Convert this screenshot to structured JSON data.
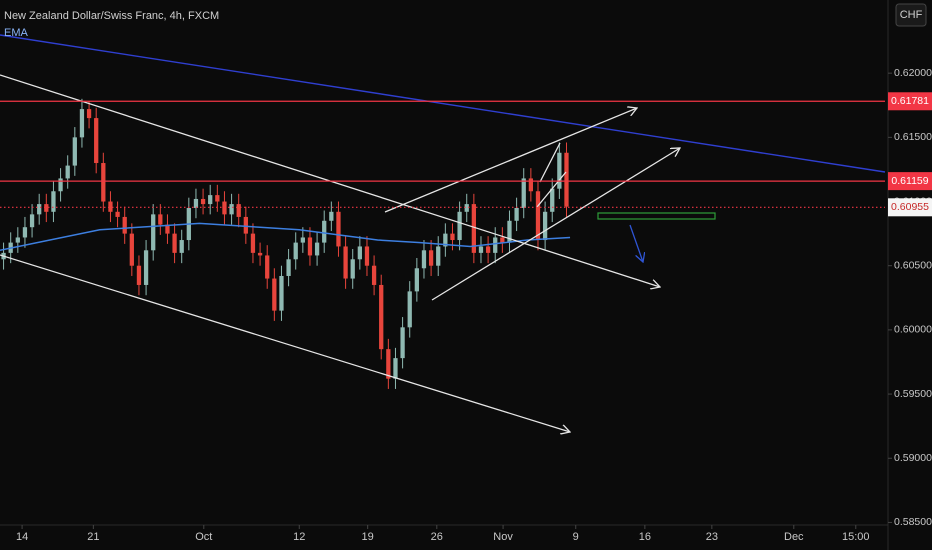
{
  "header": {
    "title": "New Zealand Dollar/Swiss Franc, 4h, FXCM",
    "currency": "CHF"
  },
  "chart_data": {
    "type": "candlestick",
    "up_color": "#8fb9b2",
    "down_color": "#e8453c",
    "ohlc": [
      [
        0.6055,
        0.6068,
        0.6047,
        0.606
      ],
      [
        0.606,
        0.6076,
        0.6052,
        0.6068
      ],
      [
        0.6068,
        0.608,
        0.606,
        0.6072
      ],
      [
        0.6072,
        0.6088,
        0.6064,
        0.608
      ],
      [
        0.608,
        0.6098,
        0.6072,
        0.609
      ],
      [
        0.609,
        0.6106,
        0.6082,
        0.6098
      ],
      [
        0.6098,
        0.6106,
        0.6084,
        0.6092
      ],
      [
        0.6092,
        0.6116,
        0.6084,
        0.6108
      ],
      [
        0.6108,
        0.6126,
        0.61,
        0.6118
      ],
      [
        0.6118,
        0.6136,
        0.611,
        0.6128
      ],
      [
        0.6128,
        0.6158,
        0.612,
        0.615
      ],
      [
        0.615,
        0.618,
        0.6142,
        0.6172
      ],
      [
        0.6172,
        0.6178,
        0.6157,
        0.6165
      ],
      [
        0.6165,
        0.6173,
        0.6122,
        0.613
      ],
      [
        0.613,
        0.6138,
        0.6092,
        0.61
      ],
      [
        0.61,
        0.6108,
        0.6084,
        0.6092
      ],
      [
        0.6092,
        0.61,
        0.608,
        0.6088
      ],
      [
        0.6088,
        0.6096,
        0.6067,
        0.6075
      ],
      [
        0.6075,
        0.6083,
        0.6042,
        0.605
      ],
      [
        0.605,
        0.6058,
        0.6027,
        0.6035
      ],
      [
        0.6035,
        0.607,
        0.6027,
        0.6062
      ],
      [
        0.6062,
        0.6098,
        0.6054,
        0.609
      ],
      [
        0.609,
        0.6098,
        0.6074,
        0.6082
      ],
      [
        0.6082,
        0.609,
        0.6067,
        0.6075
      ],
      [
        0.6075,
        0.6083,
        0.6052,
        0.606
      ],
      [
        0.606,
        0.6078,
        0.6052,
        0.607
      ],
      [
        0.607,
        0.6103,
        0.6062,
        0.6095
      ],
      [
        0.6095,
        0.611,
        0.6087,
        0.6102
      ],
      [
        0.6102,
        0.611,
        0.609,
        0.6098
      ],
      [
        0.6098,
        0.6113,
        0.609,
        0.6105
      ],
      [
        0.6105,
        0.6113,
        0.6092,
        0.61
      ],
      [
        0.61,
        0.6108,
        0.6082,
        0.609
      ],
      [
        0.609,
        0.6106,
        0.6082,
        0.6098
      ],
      [
        0.6098,
        0.6106,
        0.608,
        0.6088
      ],
      [
        0.6088,
        0.6096,
        0.6067,
        0.6075
      ],
      [
        0.6075,
        0.6083,
        0.6052,
        0.606
      ],
      [
        0.606,
        0.6068,
        0.605,
        0.6058
      ],
      [
        0.6058,
        0.6066,
        0.6032,
        0.604
      ],
      [
        0.604,
        0.6048,
        0.6007,
        0.6015
      ],
      [
        0.6015,
        0.605,
        0.6007,
        0.6042
      ],
      [
        0.6042,
        0.6063,
        0.6034,
        0.6055
      ],
      [
        0.6055,
        0.6076,
        0.6047,
        0.6068
      ],
      [
        0.6068,
        0.608,
        0.606,
        0.6072
      ],
      [
        0.6072,
        0.608,
        0.605,
        0.6058
      ],
      [
        0.6058,
        0.6076,
        0.605,
        0.6068
      ],
      [
        0.6068,
        0.6093,
        0.606,
        0.6085
      ],
      [
        0.6085,
        0.61,
        0.6077,
        0.6092
      ],
      [
        0.6092,
        0.61,
        0.6057,
        0.6065
      ],
      [
        0.6065,
        0.6073,
        0.6032,
        0.604
      ],
      [
        0.604,
        0.6063,
        0.6032,
        0.6055
      ],
      [
        0.6055,
        0.6073,
        0.6047,
        0.6065
      ],
      [
        0.6065,
        0.6073,
        0.6042,
        0.605
      ],
      [
        0.605,
        0.6058,
        0.6027,
        0.6035
      ],
      [
        0.6035,
        0.6043,
        0.5977,
        0.5985
      ],
      [
        0.5985,
        0.5993,
        0.5954,
        0.5962
      ],
      [
        0.5962,
        0.5986,
        0.5954,
        0.5978
      ],
      [
        0.5978,
        0.601,
        0.597,
        0.6002
      ],
      [
        0.6002,
        0.6038,
        0.5994,
        0.603
      ],
      [
        0.603,
        0.6056,
        0.6022,
        0.6048
      ],
      [
        0.6048,
        0.607,
        0.604,
        0.6062
      ],
      [
        0.6062,
        0.607,
        0.6042,
        0.605
      ],
      [
        0.605,
        0.6073,
        0.6042,
        0.6065
      ],
      [
        0.6065,
        0.6083,
        0.6057,
        0.6075
      ],
      [
        0.6075,
        0.6083,
        0.6062,
        0.607
      ],
      [
        0.607,
        0.61,
        0.6062,
        0.6092
      ],
      [
        0.6092,
        0.6106,
        0.6084,
        0.6098
      ],
      [
        0.6098,
        0.6106,
        0.6052,
        0.606
      ],
      [
        0.606,
        0.6073,
        0.6052,
        0.6065
      ],
      [
        0.6065,
        0.6073,
        0.6052,
        0.606
      ],
      [
        0.606,
        0.608,
        0.6052,
        0.6072
      ],
      [
        0.6072,
        0.608,
        0.606,
        0.6068
      ],
      [
        0.6068,
        0.6093,
        0.606,
        0.6085
      ],
      [
        0.6085,
        0.6103,
        0.6077,
        0.6095
      ],
      [
        0.6095,
        0.6126,
        0.6087,
        0.6118
      ],
      [
        0.6118,
        0.6126,
        0.61,
        0.6108
      ],
      [
        0.6108,
        0.6116,
        0.6062,
        0.607
      ],
      [
        0.607,
        0.61,
        0.6062,
        0.6092
      ],
      [
        0.6092,
        0.6118,
        0.6084,
        0.611
      ],
      [
        0.611,
        0.6146,
        0.6102,
        0.6138
      ],
      [
        0.6138,
        0.6146,
        0.6088,
        0.6096
      ]
    ],
    "ema": {
      "name": "EMA",
      "color": "#3d7fe0",
      "x": [
        0,
        14,
        28,
        42,
        53,
        59,
        66,
        74,
        80
      ],
      "values": [
        0.6062,
        0.6078,
        0.6083,
        0.6078,
        0.607,
        0.6068,
        0.6065,
        0.607,
        0.6072
      ]
    },
    "price_lines": [
      {
        "value": 0.61781,
        "color": "#f23645",
        "text_color": "#ffffff",
        "style": "solid"
      },
      {
        "value": 0.61159,
        "color": "#f23645",
        "text_color": "#ffffff",
        "style": "solid"
      },
      {
        "value": 0.60955,
        "color": "#f23645",
        "text_color": "#c62828",
        "style": "dotted"
      }
    ],
    "ylim": [
      0.5848,
      0.6257
    ],
    "yticks": [
      {
        "value": 0.585,
        "label": "0.58500"
      },
      {
        "value": 0.59,
        "label": "0.59000"
      },
      {
        "value": 0.595,
        "label": "0.59500"
      },
      {
        "value": 0.6,
        "label": "0.60000"
      },
      {
        "value": 0.605,
        "label": "0.60500"
      },
      {
        "value": 0.61,
        "label": "0.61000"
      },
      {
        "value": 0.615,
        "label": "0.61500"
      },
      {
        "value": 0.62,
        "label": "0.62000"
      }
    ],
    "xlim": [
      0,
      124.2
    ],
    "xticks": [
      {
        "value": 3.1,
        "label": "14"
      },
      {
        "value": 13.1,
        "label": "21"
      },
      {
        "value": 28.6,
        "label": "Oct"
      },
      {
        "value": 42,
        "label": "12"
      },
      {
        "value": 51.6,
        "label": "19"
      },
      {
        "value": 61.3,
        "label": "26"
      },
      {
        "value": 70.6,
        "label": "Nov"
      },
      {
        "value": 80.8,
        "label": "9"
      },
      {
        "value": 90.5,
        "label": "16"
      },
      {
        "value": 99.9,
        "label": "23"
      },
      {
        "value": 111.4,
        "label": "Dec"
      },
      {
        "value": 120.1,
        "label": "15:00"
      }
    ]
  }
}
